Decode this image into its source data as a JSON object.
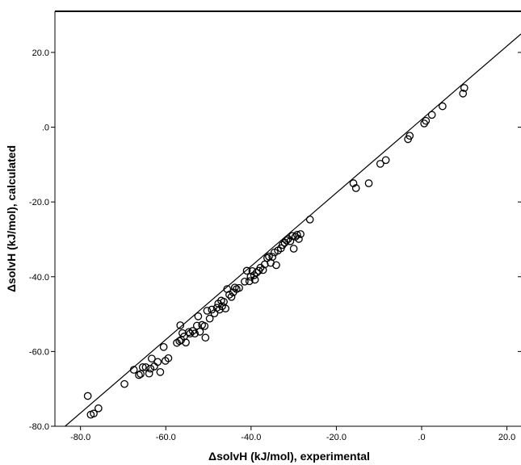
{
  "chart_data": {
    "type": "scatter",
    "xlabel": "ΔsolvH (kJ/mol), experimental",
    "ylabel": "ΔsolvH (kJ/mol), calculated",
    "xlim": [
      -86.0,
      23.3
    ],
    "ylim": [
      -80.0,
      31.0
    ],
    "x_ticks": [
      -80,
      -60,
      -40,
      -20,
      0,
      20
    ],
    "x_tick_labels": [
      "-80.0",
      "-60.0",
      "-40.0",
      "-20.0",
      ".0",
      "20.0"
    ],
    "y_ticks": [
      -80,
      -60,
      -40,
      -20,
      0,
      20
    ],
    "y_tick_labels": [
      "-80.0",
      "-60.0",
      "-40.0",
      "-20.0",
      ".0",
      "20.0"
    ],
    "grid": false,
    "legend": "none",
    "marker": "open-circle",
    "marker_color": "#000000",
    "fit_line": {
      "slope": 0.9815,
      "intercept": 2.07
    },
    "points": [
      {
        "x": -78.3,
        "y": -71.9
      },
      {
        "x": -77.6,
        "y": -76.9
      },
      {
        "x": -76.9,
        "y": -76.6
      },
      {
        "x": -75.8,
        "y": -75.2
      },
      {
        "x": -69.7,
        "y": -68.7
      },
      {
        "x": -67.5,
        "y": -64.9
      },
      {
        "x": -66.3,
        "y": -66.3
      },
      {
        "x": -65.9,
        "y": -66.0
      },
      {
        "x": -65.4,
        "y": -64.2
      },
      {
        "x": -64.7,
        "y": -64.2
      },
      {
        "x": -63.9,
        "y": -65.9
      },
      {
        "x": -63.6,
        "y": -64.6
      },
      {
        "x": -63.3,
        "y": -61.9
      },
      {
        "x": -62.7,
        "y": -64.0
      },
      {
        "x": -61.9,
        "y": -62.8
      },
      {
        "x": -61.3,
        "y": -65.5
      },
      {
        "x": -60.5,
        "y": -58.8
      },
      {
        "x": -60.1,
        "y": -62.5
      },
      {
        "x": -59.4,
        "y": -61.8
      },
      {
        "x": -57.4,
        "y": -57.7
      },
      {
        "x": -56.8,
        "y": -57.2
      },
      {
        "x": -56.6,
        "y": -53.0
      },
      {
        "x": -56.4,
        "y": -56.9
      },
      {
        "x": -56.1,
        "y": -55.1
      },
      {
        "x": -55.7,
        "y": -56.0
      },
      {
        "x": -55.3,
        "y": -57.6
      },
      {
        "x": -54.6,
        "y": -54.8
      },
      {
        "x": -54.3,
        "y": -55.2
      },
      {
        "x": -53.7,
        "y": -54.5
      },
      {
        "x": -53.2,
        "y": -55.2
      },
      {
        "x": -52.7,
        "y": -53.1
      },
      {
        "x": -52.4,
        "y": -50.6
      },
      {
        "x": -52.0,
        "y": -54.7
      },
      {
        "x": -51.5,
        "y": -52.9
      },
      {
        "x": -50.9,
        "y": -53.2
      },
      {
        "x": -50.7,
        "y": -56.3
      },
      {
        "x": -50.3,
        "y": -49.1
      },
      {
        "x": -49.7,
        "y": -51.2
      },
      {
        "x": -49.2,
        "y": -48.8
      },
      {
        "x": -48.6,
        "y": -49.8
      },
      {
        "x": -48.0,
        "y": -48.3
      },
      {
        "x": -47.7,
        "y": -47.2
      },
      {
        "x": -47.4,
        "y": -48.8
      },
      {
        "x": -47.0,
        "y": -46.4
      },
      {
        "x": -46.8,
        "y": -47.9
      },
      {
        "x": -46.4,
        "y": -46.7
      },
      {
        "x": -46.0,
        "y": -48.5
      },
      {
        "x": -45.6,
        "y": -43.3
      },
      {
        "x": -45.1,
        "y": -44.8
      },
      {
        "x": -44.6,
        "y": -45.4
      },
      {
        "x": -44.2,
        "y": -44.2
      },
      {
        "x": -43.8,
        "y": -42.9
      },
      {
        "x": -43.4,
        "y": -43.3
      },
      {
        "x": -42.8,
        "y": -43.0
      },
      {
        "x": -41.5,
        "y": -41.3
      },
      {
        "x": -41.0,
        "y": -38.4
      },
      {
        "x": -40.4,
        "y": -41.2
      },
      {
        "x": -40.1,
        "y": -40.0
      },
      {
        "x": -39.7,
        "y": -38.5
      },
      {
        "x": -39.3,
        "y": -39.6
      },
      {
        "x": -39.1,
        "y": -40.8
      },
      {
        "x": -38.7,
        "y": -38.9
      },
      {
        "x": -38.2,
        "y": -38.4
      },
      {
        "x": -37.8,
        "y": -37.6
      },
      {
        "x": -37.2,
        "y": -38.2
      },
      {
        "x": -36.8,
        "y": -36.7
      },
      {
        "x": -36.2,
        "y": -35.0
      },
      {
        "x": -35.8,
        "y": -34.6
      },
      {
        "x": -35.4,
        "y": -36.3
      },
      {
        "x": -35.0,
        "y": -34.7
      },
      {
        "x": -34.5,
        "y": -33.5
      },
      {
        "x": -34.1,
        "y": -36.9
      },
      {
        "x": -33.7,
        "y": -33.0
      },
      {
        "x": -33.0,
        "y": -32.4
      },
      {
        "x": -32.6,
        "y": -31.5
      },
      {
        "x": -32.1,
        "y": -30.9
      },
      {
        "x": -31.7,
        "y": -30.3
      },
      {
        "x": -31.3,
        "y": -29.9
      },
      {
        "x": -30.8,
        "y": -30.5
      },
      {
        "x": -30.3,
        "y": -29.1
      },
      {
        "x": -30.0,
        "y": -32.5
      },
      {
        "x": -29.6,
        "y": -29.3
      },
      {
        "x": -29.2,
        "y": -28.8
      },
      {
        "x": -28.8,
        "y": -29.9
      },
      {
        "x": -28.4,
        "y": -28.6
      },
      {
        "x": -26.2,
        "y": -24.7
      },
      {
        "x": -16.0,
        "y": -15.0
      },
      {
        "x": -15.4,
        "y": -16.3
      },
      {
        "x": -12.4,
        "y": -15.0
      },
      {
        "x": -9.7,
        "y": -9.8
      },
      {
        "x": -8.4,
        "y": -8.8
      },
      {
        "x": -3.2,
        "y": -3.2
      },
      {
        "x": -2.8,
        "y": -2.3
      },
      {
        "x": 0.6,
        "y": 1.0
      },
      {
        "x": 1.0,
        "y": 1.7
      },
      {
        "x": 2.4,
        "y": 3.3
      },
      {
        "x": 4.9,
        "y": 5.6
      },
      {
        "x": 9.7,
        "y": 9.0
      },
      {
        "x": 10.0,
        "y": 10.5
      }
    ]
  }
}
